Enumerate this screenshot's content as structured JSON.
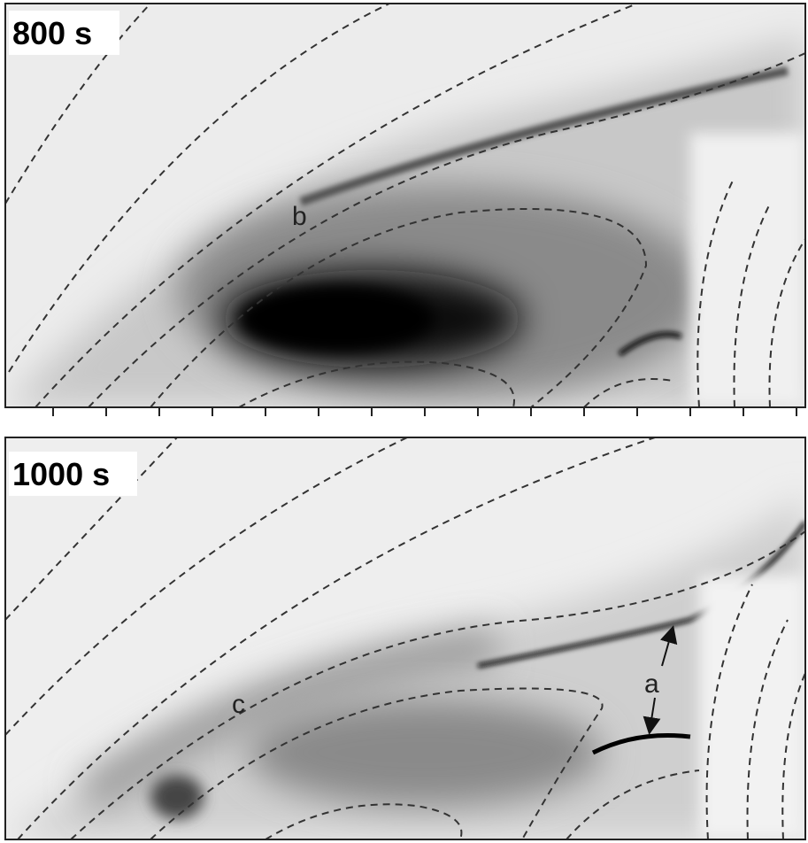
{
  "panels": [
    {
      "label": "800 s",
      "annotations": [
        "b"
      ]
    },
    {
      "label": "1000 s",
      "annotations": [
        "c",
        "a"
      ]
    }
  ]
}
